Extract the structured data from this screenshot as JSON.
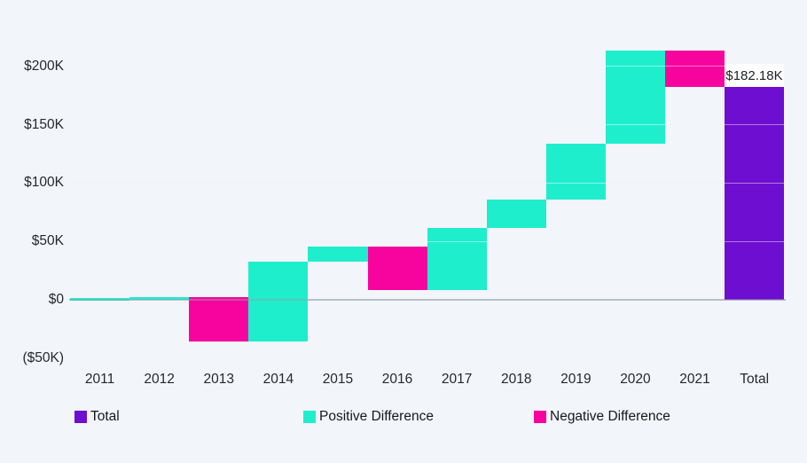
{
  "page": {
    "background_color": "#F2F5FA"
  },
  "chart_data": {
    "type": "bar",
    "variant": "waterfall",
    "title": "",
    "xlabel": "",
    "ylabel": "",
    "value_unit": "$K",
    "grid": true,
    "categories": [
      "2011",
      "2012",
      "2013",
      "2014",
      "2015",
      "2016",
      "2017",
      "2018",
      "2019",
      "2020",
      "2021",
      "Total"
    ],
    "steps": [
      {
        "category": "2011",
        "kind": "positive",
        "diff": 0.3,
        "start": 0,
        "end": 0.3
      },
      {
        "category": "2012",
        "kind": "positive",
        "diff": 2.2,
        "start": 0.3,
        "end": 2.5
      },
      {
        "category": "2013",
        "kind": "negative",
        "diff": -38.2,
        "start": 2.5,
        "end": -35.7
      },
      {
        "category": "2014",
        "kind": "positive",
        "diff": 68.1,
        "start": -35.7,
        "end": 32.4
      },
      {
        "category": "2015",
        "kind": "positive",
        "diff": 13.2,
        "start": 32.4,
        "end": 45.6
      },
      {
        "category": "2016",
        "kind": "negative",
        "diff": -37.2,
        "start": 45.6,
        "end": 8.4
      },
      {
        "category": "2017",
        "kind": "positive",
        "diff": 53.4,
        "start": 8.4,
        "end": 61.8
      },
      {
        "category": "2018",
        "kind": "positive",
        "diff": 24.4,
        "start": 61.8,
        "end": 86.2
      },
      {
        "category": "2019",
        "kind": "positive",
        "diff": 47.8,
        "start": 86.2,
        "end": 134.0
      },
      {
        "category": "2020",
        "kind": "positive",
        "diff": 79.8,
        "start": 134.0,
        "end": 213.8
      },
      {
        "category": "2021",
        "kind": "negative",
        "diff": -31.62,
        "start": 213.8,
        "end": 182.18
      },
      {
        "category": "Total",
        "kind": "total",
        "diff": 182.18,
        "start": 0,
        "end": 182.18
      }
    ],
    "y_axis": {
      "range_k": [
        -50,
        225
      ],
      "ticks": [
        {
          "value": 200,
          "label": "$200K"
        },
        {
          "value": 150,
          "label": "$150K"
        },
        {
          "value": 100,
          "label": "$100K"
        },
        {
          "value": 50,
          "label": "$50K"
        },
        {
          "value": 0,
          "label": "$0"
        },
        {
          "value": -50,
          "label": "($50K)"
        }
      ]
    },
    "x_axis": {
      "tick_labels": [
        "2011",
        "2012",
        "2013",
        "2014",
        "2015",
        "2016",
        "2017",
        "2018",
        "2019",
        "2020",
        "2021",
        "Total"
      ]
    },
    "data_labels": [
      {
        "category": "Total",
        "text": "$182.18K",
        "background": "#FFFFFF"
      }
    ],
    "legend": {
      "position": "bottom",
      "items": [
        {
          "label": "Total",
          "kind": "total",
          "color": "#6E0ED1"
        },
        {
          "label": "Positive Difference",
          "kind": "positive",
          "color": "#1FEECD"
        },
        {
          "label": "Negative Difference",
          "kind": "negative",
          "color": "#F7049E"
        }
      ]
    },
    "colors": {
      "total": "#6E0ED1",
      "positive": "#1FEECD",
      "negative": "#F7049E",
      "gridline": "#E6EAF0",
      "zero_line": "rgba(150,158,170,0.5)",
      "gridline_over_bars": "rgba(255,255,255,0.45)",
      "axis_text": "#27282B",
      "label_text": "#1F2124",
      "label_background": "#FFFFFF"
    }
  }
}
